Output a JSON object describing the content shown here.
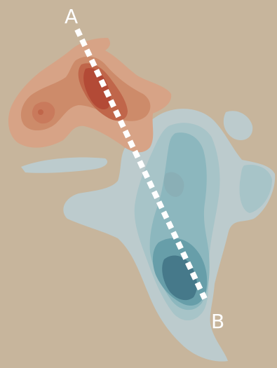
{
  "map": {
    "background_color": "#c7b59c",
    "warm_anomaly_colors": [
      "#d7a386",
      "#cd8b6a",
      "#c0664a",
      "#b34a36"
    ],
    "cool_anomaly_colors": [
      "#bccbcd",
      "#a7c4c8",
      "#8cb7be",
      "#679ea9",
      "#46798a"
    ],
    "transect": {
      "start_label": "A",
      "end_label": "B",
      "line_color": "#ffffff",
      "line_style": "dashed"
    }
  }
}
